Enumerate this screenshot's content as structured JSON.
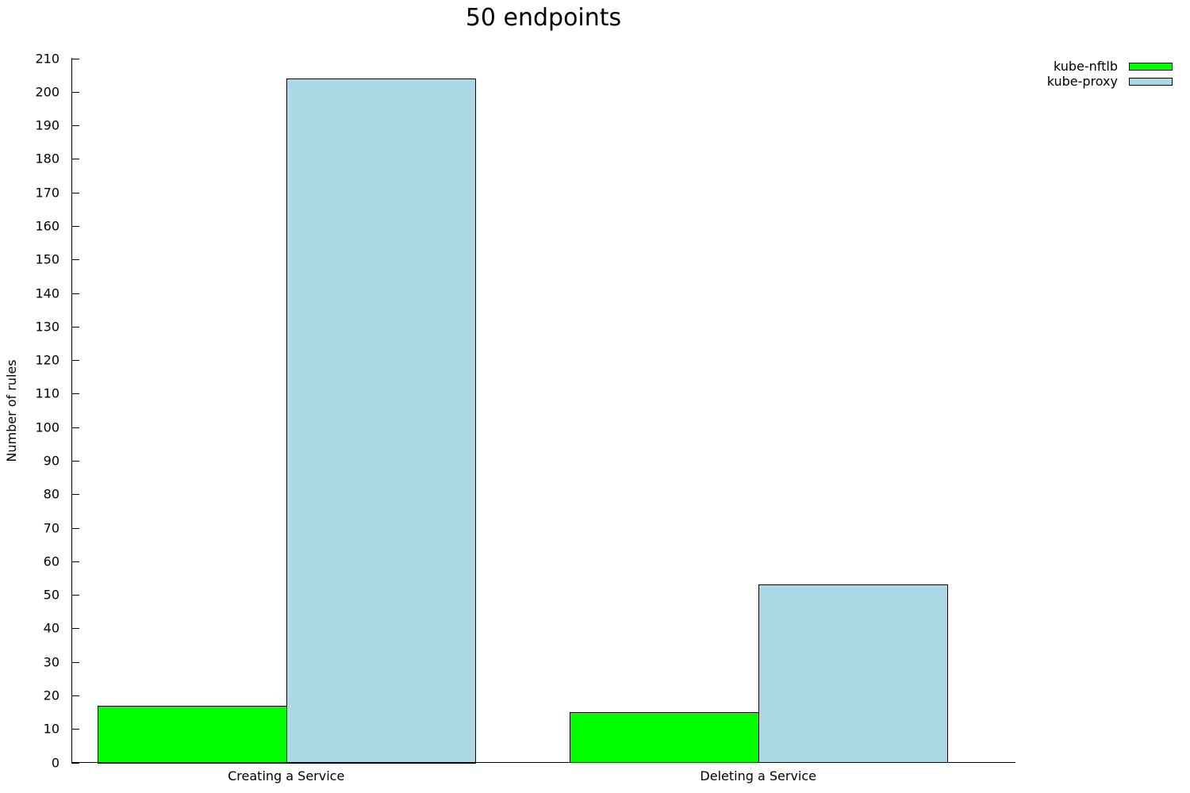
{
  "chart_data": {
    "type": "bar",
    "title": "50 endpoints",
    "xlabel": "",
    "ylabel": "Number of rules",
    "ylim": [
      0,
      210
    ],
    "y_tick_step": 10,
    "grid": false,
    "legend_position": "top-right",
    "categories": [
      "Creating a Service",
      "Deleting a Service"
    ],
    "series": [
      {
        "name": "kube-nftlb",
        "color": "#00ff00",
        "values": [
          17,
          15
        ]
      },
      {
        "name": "kube-proxy",
        "color": "#add8e6",
        "values": [
          204,
          53
        ]
      }
    ]
  }
}
